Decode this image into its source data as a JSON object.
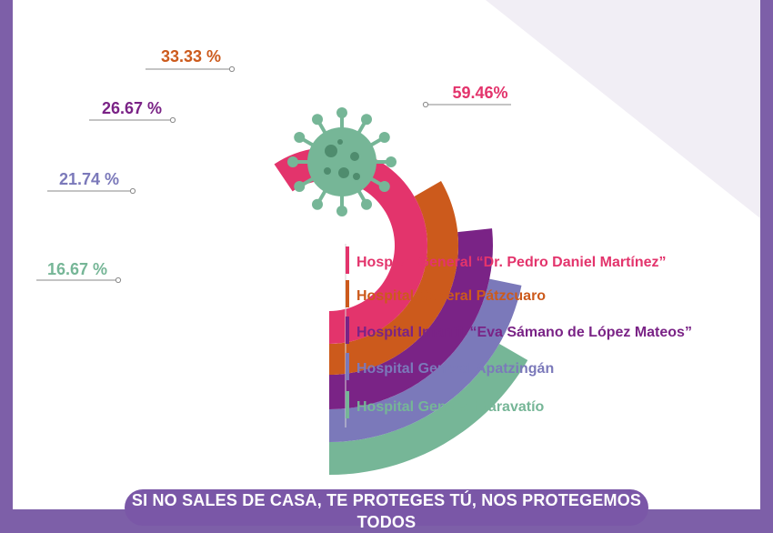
{
  "chart_data": {
    "type": "radial-bar",
    "title": "",
    "series": [
      {
        "name": "Hospital General “Dr. Pedro Daniel Martínez”",
        "value": 59.46,
        "label": "59.46%",
        "color": "#e3346c"
      },
      {
        "name": "Hospital General Pátzcuaro",
        "value": 33.33,
        "label": "33.33 %",
        "color": "#cc5a1c"
      },
      {
        "name": "Hospital Infantil “Eva Sámano de López Mateos”",
        "value": 26.67,
        "label": "26.67 %",
        "color": "#7a2386"
      },
      {
        "name": "Hospital General Apatzingán",
        "value": 21.74,
        "label": "21.74 %",
        "color": "#7b79ba"
      },
      {
        "name": "Hospital General Maravatío",
        "value": 16.67,
        "label": "16.67 %",
        "color": "#76b697"
      }
    ],
    "legend_position": "right"
  },
  "banner": {
    "text": "SI NO SALES DE CASA, TE PROTEGES TÚ, NOS PROTEGEMOS TODOS"
  },
  "colors": {
    "background": "#7d5fa8",
    "virus": "#76b697",
    "virus_dark": "#4f8c6e"
  }
}
